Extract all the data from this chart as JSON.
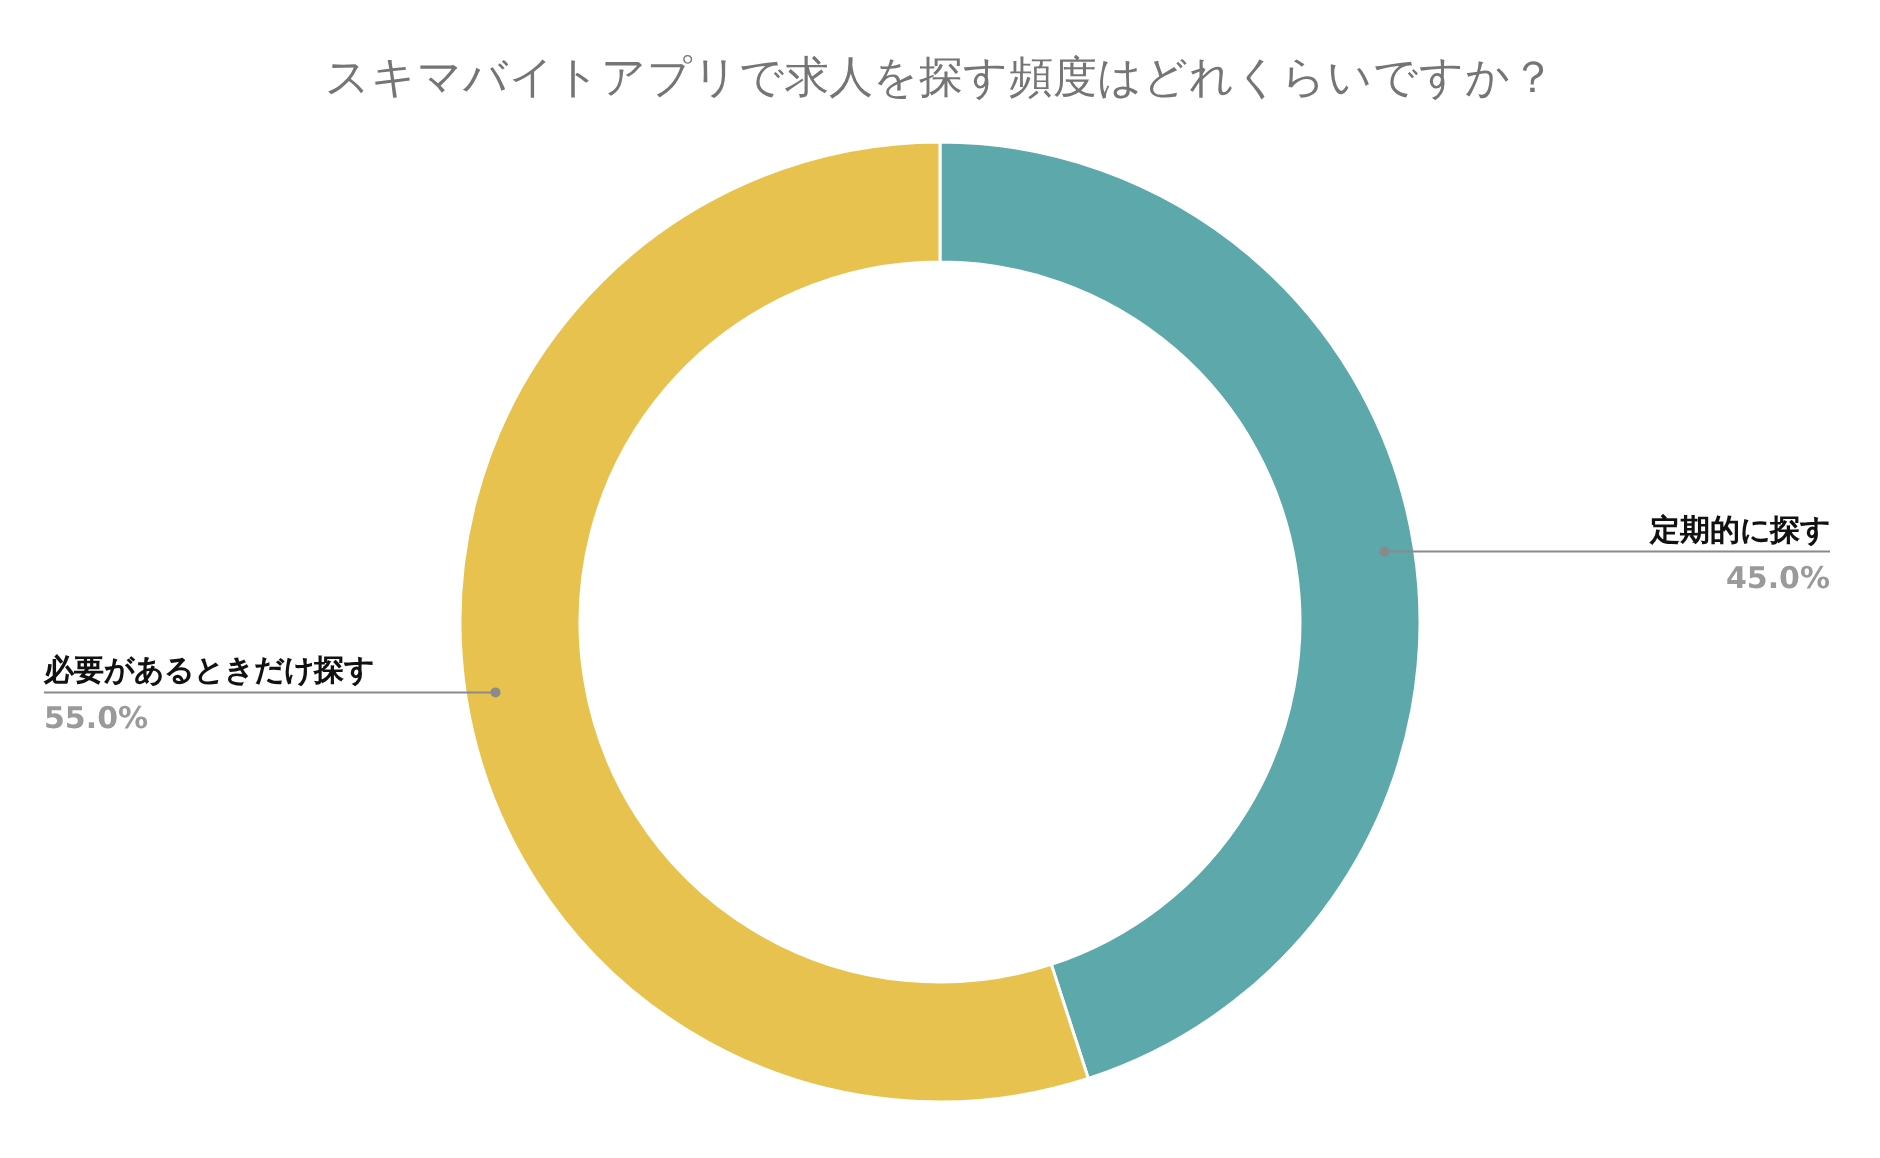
{
  "chart_data": {
    "type": "donut",
    "title": "スキマバイトアプリで求人を探す頻度はどれくらいですか？",
    "categories": [
      "定期的に探す",
      "必要があるときだけ探す"
    ],
    "values": [
      45.0,
      55.0
    ],
    "colors": [
      "#5ca8ab",
      "#e8c24f"
    ],
    "value_labels": [
      "45.0%",
      "55.0%"
    ]
  }
}
